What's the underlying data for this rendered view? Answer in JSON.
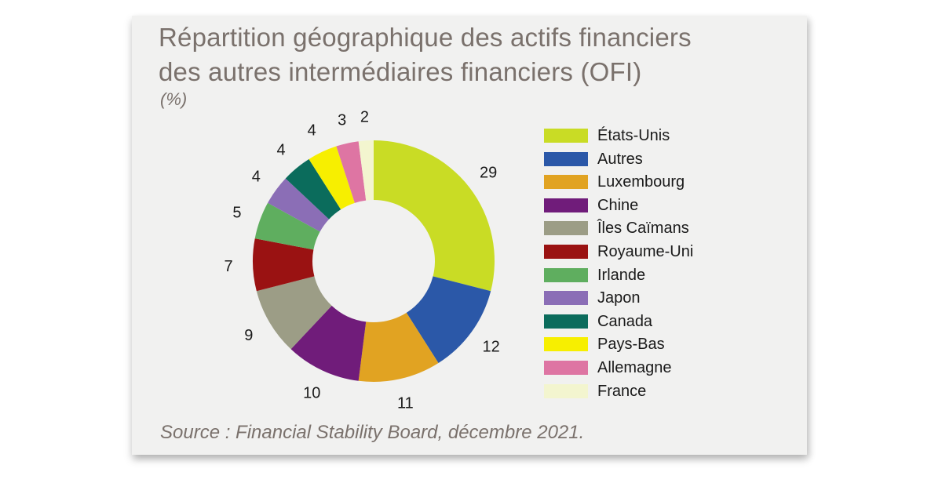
{
  "title_line1": "Répartition géographique des actifs financiers",
  "title_line2": "des autres intermédiaires financiers (OFI)",
  "unit": "(%)",
  "source": "Source : Financial Stability Board, décembre 2021.",
  "chart_data": {
    "type": "pie",
    "donut": true,
    "title": "Répartition géographique des actifs financiers des autres intermédiaires financiers (OFI)",
    "unit": "(%)",
    "legend_position": "right",
    "categories": [
      "États-Unis",
      "Autres",
      "Luxembourg",
      "Chine",
      "Îles Caïmans",
      "Royaume-Uni",
      "Irlande",
      "Japon",
      "Canada",
      "Pays-Bas",
      "Allemagne",
      "France"
    ],
    "values": [
      29,
      12,
      11,
      10,
      9,
      7,
      5,
      4,
      4,
      4,
      3,
      2
    ],
    "colors": [
      "#c9dc25",
      "#2b58a8",
      "#e1a322",
      "#701c7a",
      "#9c9d86",
      "#9a1212",
      "#5fae5f",
      "#8b6eb6",
      "#0b6c5c",
      "#f7ef00",
      "#de75a3",
      "#f3f5cf"
    ]
  }
}
